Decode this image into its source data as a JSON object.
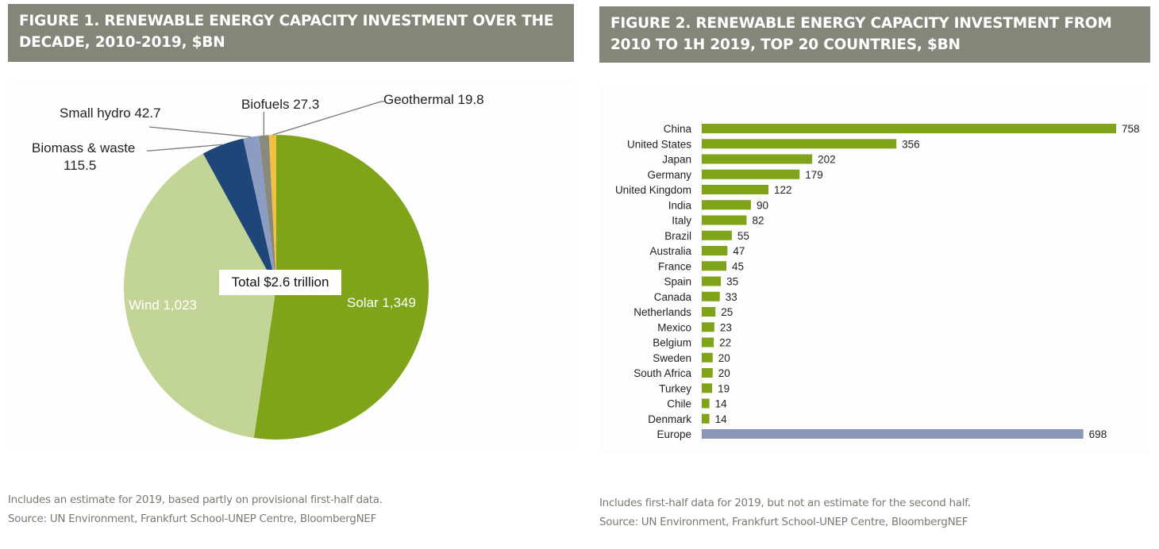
{
  "chart_data": [
    {
      "type": "pie",
      "title": "FIGURE 1. RENEWABLE ENERGY CAPACITY INVESTMENT OVER THE DECADE, 2010-2019, $BN",
      "center_label": "Total $2.6 trillion",
      "unit": "$BN",
      "slices": [
        {
          "label": "Solar",
          "value": 1349,
          "display": "Solar 1,349",
          "color": "#7fa41a"
        },
        {
          "label": "Wind",
          "value": 1023,
          "display": "Wind 1,023",
          "color": "#c3d497"
        },
        {
          "label": "Biomass & waste",
          "value": 115.5,
          "display": "Biomass & waste",
          "display2": "115.5",
          "color": "#1f4679"
        },
        {
          "label": "Small hydro",
          "value": 42.7,
          "display": "Small hydro 42.7",
          "color": "#8c9cc3"
        },
        {
          "label": "Biofuels",
          "value": 27.3,
          "display": "Biofuels 27.3",
          "color": "#8a8a7c"
        },
        {
          "label": "Geothermal",
          "value": 19.8,
          "display": "Geothermal 19.8",
          "color": "#f0c03e"
        }
      ],
      "note": "Includes an estimate for 2019, based partly on provisional first-half data.",
      "source": "Source: UN Environment, Frankfurt School-UNEP Centre, BloombergNEF"
    },
    {
      "type": "bar",
      "orientation": "horizontal",
      "title": "FIGURE 2. RENEWABLE ENERGY CAPACITY INVESTMENT FROM 2010 TO 1H 2019, TOP 20 COUNTRIES, $BN",
      "unit": "$BN",
      "categories": [
        "China",
        "United States",
        "Japan",
        "Germany",
        "United Kingdom",
        "India",
        "Italy",
        "Brazil",
        "Australia",
        "France",
        "Spain",
        "Canada",
        "Netherlands",
        "Mexico",
        "Belgium",
        "Sweden",
        "South Africa",
        "Turkey",
        "Chile",
        "Denmark",
        "Europe"
      ],
      "values": [
        758,
        356,
        202,
        179,
        122,
        90,
        82,
        55,
        47,
        45,
        35,
        33,
        25,
        23,
        22,
        20,
        20,
        19,
        14,
        14,
        698
      ],
      "colors": {
        "country": "#7fa41a",
        "region": "#8a96b8"
      },
      "xlim": [
        0,
        780
      ],
      "note": "Includes first-half data for 2019, but not an estimate for the second half.",
      "source": "Source: UN Environment, Frankfurt School-UNEP Centre, BloombergNEF"
    }
  ]
}
